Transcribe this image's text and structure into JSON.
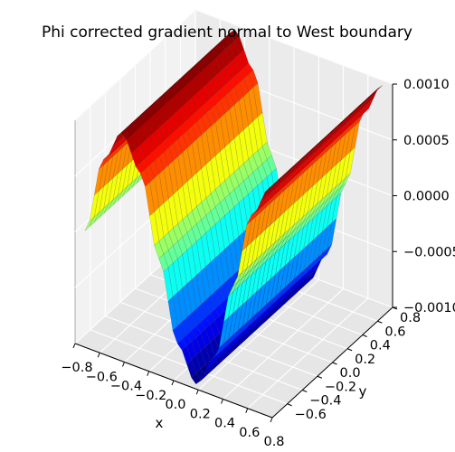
{
  "chart_data": {
    "type": "surface3d",
    "title": "Phi corrected gradient normal to West boundary",
    "xlabel": "x",
    "ylabel": "y",
    "zlabel": "",
    "xlim": [
      -0.8,
      0.8
    ],
    "ylim": [
      -0.8,
      0.8
    ],
    "zlim": [
      -0.001,
      0.001
    ],
    "x_ticks": [
      "−0.8",
      "−0.6",
      "−0.4",
      "−0.2",
      "0.0",
      "0.2",
      "0.4",
      "0.6",
      "0.8"
    ],
    "y_ticks": [
      "−0.6",
      "−0.4",
      "−0.2",
      "0.0",
      "0.2",
      "0.4",
      "0.6",
      "0.8"
    ],
    "z_ticks": [
      "−0.0010",
      "−0.0005",
      "0.0000",
      "0.0005",
      "0.0010"
    ],
    "colormap": "jet",
    "grid": true,
    "surface": {
      "x_range": [
        -0.75,
        0.75
      ],
      "y_range": [
        -0.75,
        0.75
      ],
      "profile_along": "x",
      "x_samples": [
        -0.75,
        -0.6,
        -0.45,
        -0.3,
        -0.15,
        0.0,
        0.15,
        0.3,
        0.45,
        0.6,
        0.75
      ],
      "z_samples": [
        0.0,
        0.0007,
        0.001,
        0.0007,
        0.0,
        -0.0007,
        -0.001,
        -0.0007,
        0.0,
        0.0007,
        0.001
      ],
      "note_shape": "z = 0.001 * sin(2*pi*x/1.2 + pi*1.25), constant along y"
    }
  }
}
